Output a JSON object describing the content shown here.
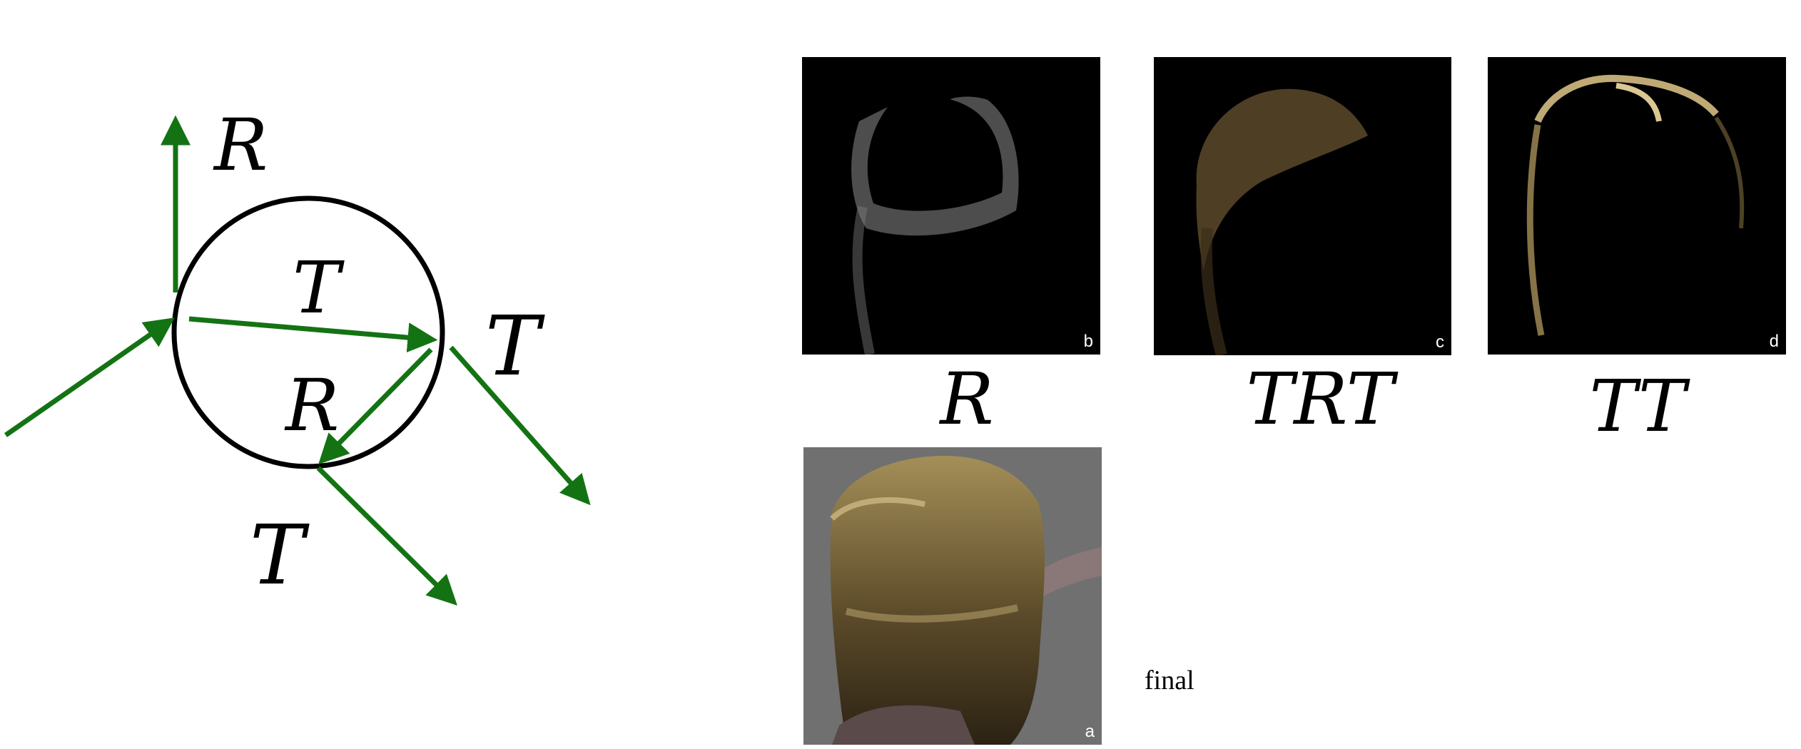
{
  "diagram": {
    "labels": {
      "reflect_outer": "R",
      "transmit_inner": "T",
      "transmit_exit_right": "T",
      "reflect_inner": "R",
      "transmit_exit_bottom": "T"
    },
    "colors": {
      "ray": "#137313",
      "circle": "#000000"
    }
  },
  "panels": [
    {
      "id": "b",
      "corner": "b",
      "caption": "R"
    },
    {
      "id": "c",
      "corner": "c",
      "caption": "TRT"
    },
    {
      "id": "d",
      "corner": "d",
      "caption": "TT"
    },
    {
      "id": "a",
      "corner": "a",
      "caption": "final"
    }
  ]
}
